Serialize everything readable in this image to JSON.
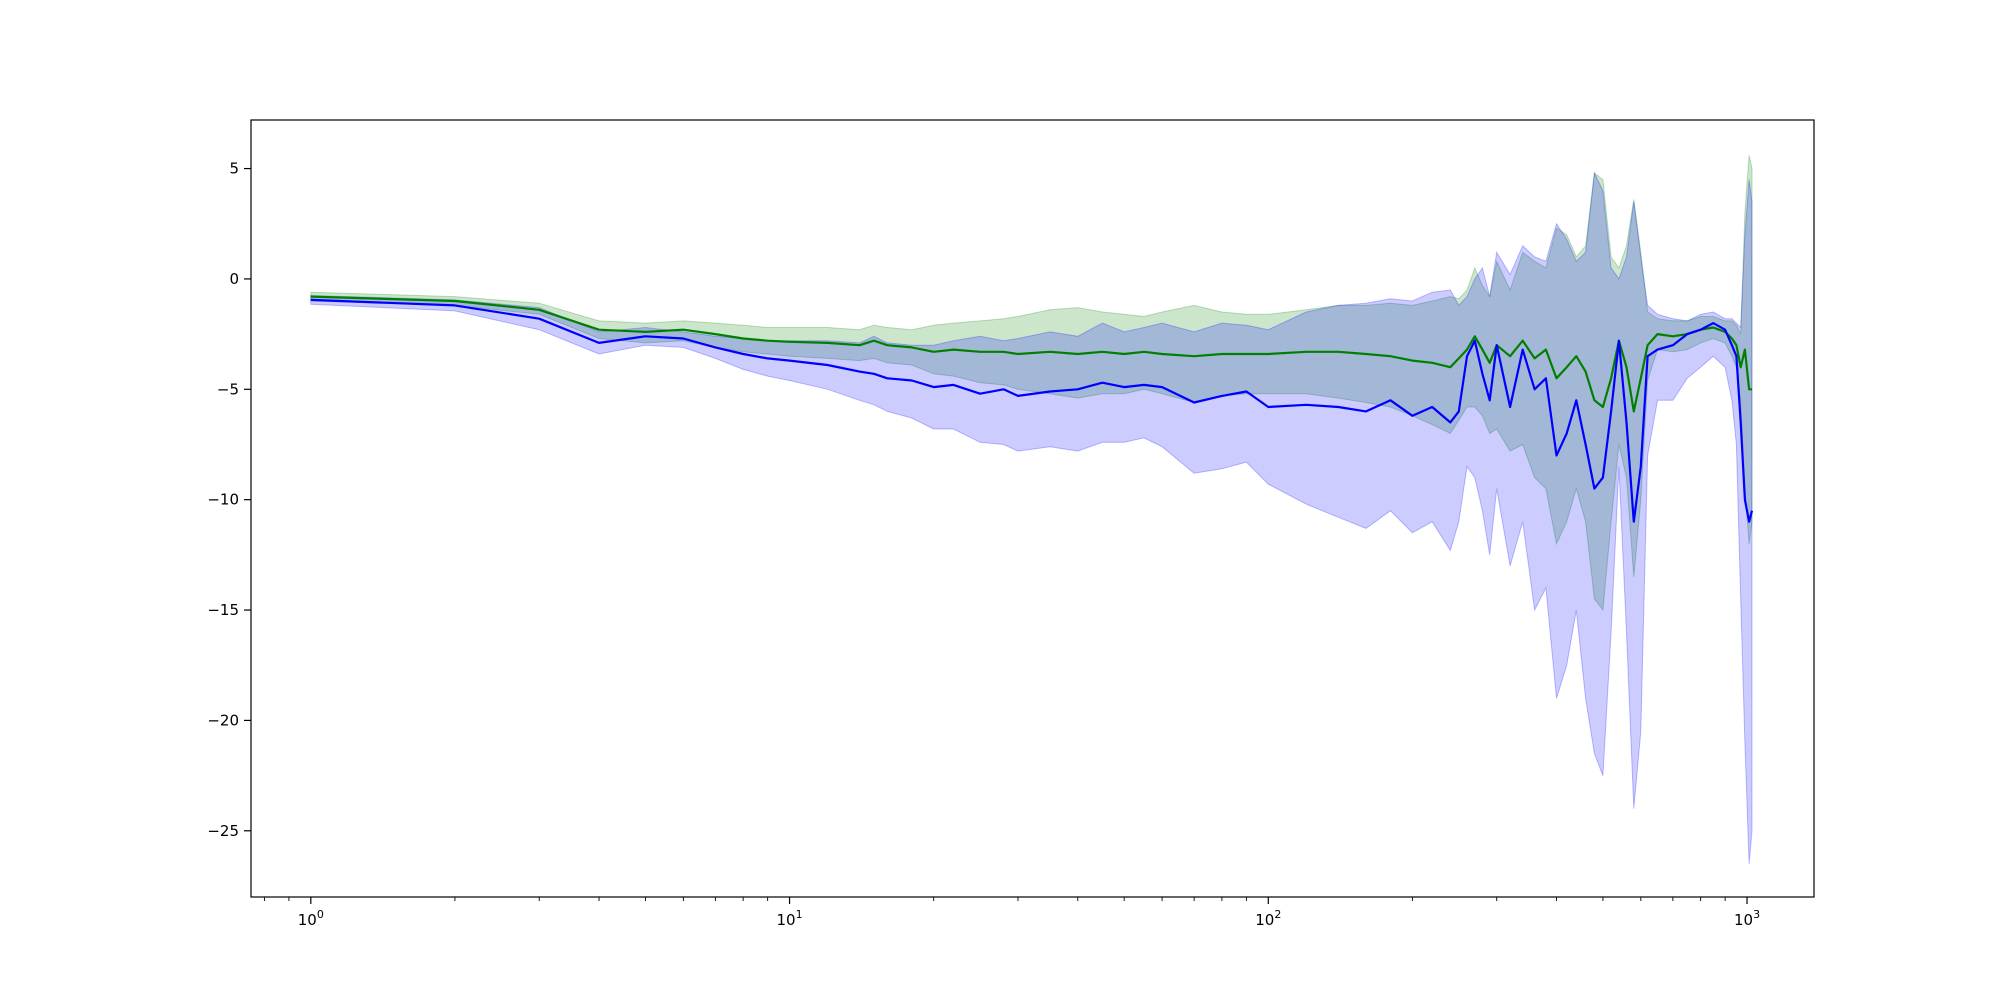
{
  "chart_data": {
    "type": "line",
    "title": "",
    "xlabel": "",
    "ylabel": "",
    "x_scale": "log",
    "xlim": [
      0.75,
      1380
    ],
    "ylim": [
      -28,
      7.2
    ],
    "grid": false,
    "x_ticks": [
      {
        "value": 1,
        "base": "10",
        "exp": "0"
      },
      {
        "value": 10,
        "base": "10",
        "exp": "1"
      },
      {
        "value": 100,
        "base": "10",
        "exp": "2"
      },
      {
        "value": 1000,
        "base": "10",
        "exp": "3"
      }
    ],
    "y_ticks": [
      {
        "value": 5,
        "label": "5"
      },
      {
        "value": 0,
        "label": "0"
      },
      {
        "value": -5,
        "label": "−5"
      },
      {
        "value": -10,
        "label": "−10"
      },
      {
        "value": -15,
        "label": "−15"
      },
      {
        "value": -20,
        "label": "−20"
      },
      {
        "value": -25,
        "label": "−25"
      }
    ],
    "series": [
      {
        "color": "#008000",
        "band_color": "#008000",
        "band_opacity": 0.2,
        "x": [
          1,
          2,
          3,
          4,
          5,
          6,
          7,
          8,
          9,
          10,
          12,
          14,
          15,
          16,
          18,
          20,
          22,
          25,
          28,
          30,
          35,
          40,
          45,
          50,
          55,
          60,
          70,
          80,
          90,
          100,
          120,
          140,
          160,
          180,
          200,
          220,
          240,
          250,
          260,
          270,
          280,
          290,
          300,
          320,
          340,
          360,
          380,
          400,
          420,
          440,
          460,
          480,
          500,
          520,
          540,
          560,
          580,
          600,
          620,
          650,
          700,
          750,
          800,
          850,
          900,
          930,
          950,
          970,
          990,
          1010,
          1024
        ],
        "mean": [
          -0.8,
          -1.0,
          -1.4,
          -2.3,
          -2.4,
          -2.3,
          -2.5,
          -2.7,
          -2.8,
          -2.85,
          -2.9,
          -3.0,
          -2.8,
          -3.0,
          -3.1,
          -3.3,
          -3.2,
          -3.3,
          -3.3,
          -3.4,
          -3.3,
          -3.4,
          -3.3,
          -3.4,
          -3.3,
          -3.4,
          -3.5,
          -3.4,
          -3.4,
          -3.4,
          -3.3,
          -3.3,
          -3.4,
          -3.5,
          -3.7,
          -3.8,
          -4.0,
          -3.6,
          -3.2,
          -2.6,
          -3.2,
          -3.8,
          -3.0,
          -3.5,
          -2.8,
          -3.6,
          -3.2,
          -4.5,
          -4.0,
          -3.5,
          -4.2,
          -5.5,
          -5.8,
          -4.5,
          -2.8,
          -4.0,
          -6.0,
          -4.5,
          -3.0,
          -2.5,
          -2.6,
          -2.5,
          -2.3,
          -2.2,
          -2.4,
          -2.7,
          -3.0,
          -4.0,
          -3.2,
          -5.0,
          -5.0
        ],
        "upper": [
          -0.6,
          -0.8,
          -1.1,
          -1.9,
          -2.0,
          -1.9,
          -2.0,
          -2.1,
          -2.2,
          -2.2,
          -2.2,
          -2.3,
          -2.1,
          -2.2,
          -2.3,
          -2.1,
          -2.0,
          -1.9,
          -1.8,
          -1.7,
          -1.4,
          -1.3,
          -1.5,
          -1.6,
          -1.7,
          -1.5,
          -1.2,
          -1.5,
          -1.6,
          -1.6,
          -1.4,
          -1.2,
          -1.2,
          -1.1,
          -1.2,
          -1.0,
          -0.8,
          -0.9,
          -0.5,
          0.5,
          -0.3,
          -0.8,
          0.8,
          -0.5,
          1.2,
          0.8,
          0.5,
          2.3,
          2.0,
          1.0,
          1.5,
          4.8,
          4.5,
          1.0,
          0.5,
          1.5,
          3.6,
          1.2,
          -1.5,
          -1.8,
          -1.9,
          -1.9,
          -1.7,
          -1.7,
          -1.9,
          -1.9,
          -2.1,
          -2.5,
          3.0,
          5.6,
          5.0
        ],
        "lower": [
          -1.0,
          -1.2,
          -1.6,
          -2.7,
          -2.9,
          -2.8,
          -3.1,
          -3.3,
          -3.4,
          -3.5,
          -3.6,
          -3.7,
          -3.6,
          -3.8,
          -3.9,
          -4.3,
          -4.4,
          -4.7,
          -4.8,
          -5.0,
          -5.2,
          -5.4,
          -5.2,
          -5.2,
          -5.0,
          -5.2,
          -5.6,
          -5.3,
          -5.2,
          -5.2,
          -5.2,
          -5.4,
          -5.6,
          -5.8,
          -6.2,
          -6.6,
          -7.0,
          -6.4,
          -5.8,
          -5.8,
          -6.2,
          -7.0,
          -6.8,
          -7.8,
          -7.5,
          -9.0,
          -9.5,
          -12.0,
          -11.0,
          -9.5,
          -11.0,
          -14.5,
          -15.0,
          -11.0,
          -7.5,
          -9.0,
          -13.5,
          -10.0,
          -4.6,
          -3.2,
          -3.3,
          -3.2,
          -2.9,
          -2.7,
          -2.9,
          -3.5,
          -4.0,
          -5.5,
          -9.5,
          -12.0,
          -11.0
        ]
      },
      {
        "color": "#0000ff",
        "band_color": "#0000ff",
        "band_opacity": 0.2,
        "x": [
          1,
          2,
          3,
          4,
          5,
          6,
          7,
          8,
          9,
          10,
          12,
          14,
          15,
          16,
          18,
          20,
          22,
          25,
          28,
          30,
          35,
          40,
          45,
          50,
          55,
          60,
          70,
          80,
          90,
          100,
          120,
          140,
          160,
          180,
          200,
          220,
          240,
          250,
          260,
          270,
          280,
          290,
          300,
          320,
          340,
          360,
          380,
          400,
          420,
          440,
          460,
          480,
          500,
          520,
          540,
          560,
          580,
          600,
          620,
          650,
          700,
          750,
          800,
          850,
          900,
          930,
          950,
          970,
          990,
          1010,
          1024
        ],
        "mean": [
          -0.95,
          -1.2,
          -1.8,
          -2.9,
          -2.6,
          -2.7,
          -3.1,
          -3.4,
          -3.6,
          -3.7,
          -3.9,
          -4.2,
          -4.3,
          -4.5,
          -4.6,
          -4.9,
          -4.8,
          -5.2,
          -5.0,
          -5.3,
          -5.1,
          -5.0,
          -4.7,
          -4.9,
          -4.8,
          -4.9,
          -5.6,
          -5.3,
          -5.1,
          -5.8,
          -5.7,
          -5.8,
          -6.0,
          -5.5,
          -6.2,
          -5.8,
          -6.5,
          -6.0,
          -3.5,
          -2.8,
          -4.3,
          -5.5,
          -3.0,
          -5.8,
          -3.2,
          -5.0,
          -4.5,
          -8.0,
          -7.0,
          -5.5,
          -7.5,
          -9.5,
          -9.0,
          -6.0,
          -2.8,
          -6.5,
          -11.0,
          -8.5,
          -3.5,
          -3.2,
          -3.0,
          -2.5,
          -2.3,
          -2.0,
          -2.3,
          -3.0,
          -3.5,
          -6.5,
          -10.0,
          -11.0,
          -10.5
        ],
        "upper": [
          -0.75,
          -0.95,
          -1.3,
          -2.4,
          -2.2,
          -2.4,
          -2.6,
          -2.7,
          -2.8,
          -2.8,
          -2.8,
          -2.9,
          -2.6,
          -2.9,
          -3.0,
          -3.0,
          -2.8,
          -2.6,
          -2.8,
          -2.7,
          -2.4,
          -2.6,
          -2.0,
          -2.4,
          -2.2,
          -2.0,
          -2.4,
          -2.0,
          -2.1,
          -2.3,
          -1.5,
          -1.2,
          -1.1,
          -0.9,
          -1.0,
          -0.6,
          -0.5,
          -1.2,
          -0.8,
          0.0,
          0.5,
          -0.8,
          1.2,
          0.2,
          1.5,
          1.0,
          0.8,
          2.5,
          1.8,
          0.8,
          1.2,
          4.8,
          4.0,
          0.5,
          0.0,
          1.0,
          3.5,
          1.0,
          -1.2,
          -1.6,
          -1.8,
          -1.9,
          -1.6,
          -1.5,
          -1.8,
          -1.8,
          -2.0,
          -2.2,
          2.0,
          4.5,
          3.5
        ],
        "lower": [
          -1.15,
          -1.45,
          -2.3,
          -3.4,
          -3.0,
          -3.1,
          -3.6,
          -4.1,
          -4.4,
          -4.6,
          -5.0,
          -5.5,
          -5.7,
          -6.0,
          -6.3,
          -6.8,
          -6.8,
          -7.4,
          -7.5,
          -7.8,
          -7.6,
          -7.8,
          -7.4,
          -7.4,
          -7.2,
          -7.6,
          -8.8,
          -8.6,
          -8.3,
          -9.3,
          -10.2,
          -10.8,
          -11.3,
          -10.5,
          -11.5,
          -11.0,
          -12.3,
          -11.0,
          -8.5,
          -9.0,
          -10.5,
          -12.5,
          -9.5,
          -13.0,
          -11.0,
          -15.0,
          -14.0,
          -19.0,
          -17.5,
          -15.0,
          -19.0,
          -21.5,
          -22.5,
          -16.0,
          -8.5,
          -16.0,
          -24.0,
          -20.5,
          -8.0,
          -5.5,
          -5.5,
          -4.5,
          -4.0,
          -3.5,
          -4.0,
          -5.5,
          -7.5,
          -14.5,
          -21.0,
          -26.5,
          -25.0
        ]
      }
    ]
  }
}
